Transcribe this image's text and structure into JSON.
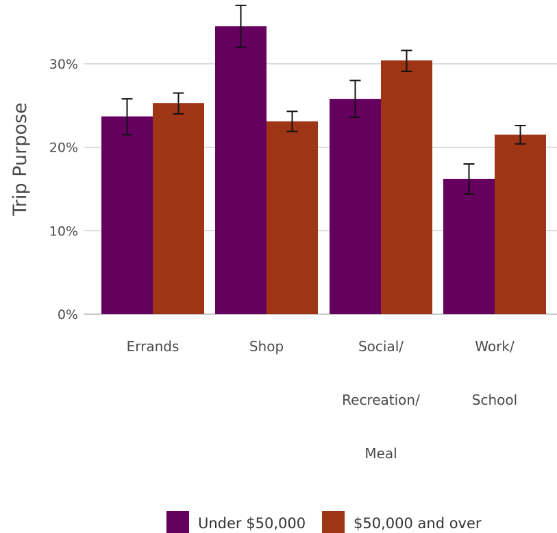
{
  "chart_data": {
    "type": "bar",
    "title": "",
    "xlabel": "",
    "ylabel": "Trip Purpose",
    "categories": [
      [
        "Errands"
      ],
      [
        "Shop"
      ],
      [
        "Social/",
        "Recreation/",
        "Meal"
      ],
      [
        "Work/",
        "School"
      ]
    ],
    "series": [
      {
        "name": "Under $50,000",
        "color": "#65005f",
        "values": [
          23.7,
          34.5,
          25.8,
          16.2
        ],
        "error_low": [
          21.5,
          32.0,
          23.6,
          14.4
        ],
        "error_high": [
          25.8,
          37.0,
          28.0,
          18.0
        ]
      },
      {
        "name": "$50,000 and over",
        "color": "#9e3514",
        "values": [
          25.3,
          23.1,
          30.4,
          21.5
        ],
        "error_low": [
          24.0,
          21.9,
          29.1,
          20.4
        ],
        "error_high": [
          26.5,
          24.3,
          31.6,
          22.6
        ]
      }
    ],
    "ylim": [
      0,
      37.5
    ],
    "yticks": [
      0,
      10,
      20,
      30
    ],
    "ytick_labels": [
      "0%",
      "10%",
      "20%",
      "30%"
    ],
    "grid": "horizontal",
    "legend_position": "bottom"
  }
}
